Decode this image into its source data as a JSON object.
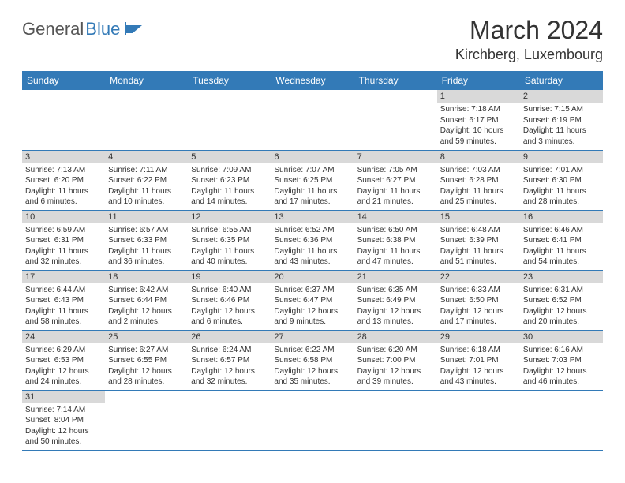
{
  "logo": {
    "part1": "General",
    "part2": "Blue"
  },
  "title": "March 2024",
  "location": "Kirchberg, Luxembourg",
  "colors": {
    "header_bg": "#337ab7",
    "header_fg": "#ffffff",
    "daynum_bg": "#d9d9d9",
    "row_border": "#337ab7",
    "text": "#333333"
  },
  "day_labels": [
    "Sunday",
    "Monday",
    "Tuesday",
    "Wednesday",
    "Thursday",
    "Friday",
    "Saturday"
  ],
  "weeks": [
    [
      null,
      null,
      null,
      null,
      null,
      {
        "n": "1",
        "sr": "Sunrise: 7:18 AM",
        "ss": "Sunset: 6:17 PM",
        "dl": "Daylight: 10 hours and 59 minutes."
      },
      {
        "n": "2",
        "sr": "Sunrise: 7:15 AM",
        "ss": "Sunset: 6:19 PM",
        "dl": "Daylight: 11 hours and 3 minutes."
      }
    ],
    [
      {
        "n": "3",
        "sr": "Sunrise: 7:13 AM",
        "ss": "Sunset: 6:20 PM",
        "dl": "Daylight: 11 hours and 6 minutes."
      },
      {
        "n": "4",
        "sr": "Sunrise: 7:11 AM",
        "ss": "Sunset: 6:22 PM",
        "dl": "Daylight: 11 hours and 10 minutes."
      },
      {
        "n": "5",
        "sr": "Sunrise: 7:09 AM",
        "ss": "Sunset: 6:23 PM",
        "dl": "Daylight: 11 hours and 14 minutes."
      },
      {
        "n": "6",
        "sr": "Sunrise: 7:07 AM",
        "ss": "Sunset: 6:25 PM",
        "dl": "Daylight: 11 hours and 17 minutes."
      },
      {
        "n": "7",
        "sr": "Sunrise: 7:05 AM",
        "ss": "Sunset: 6:27 PM",
        "dl": "Daylight: 11 hours and 21 minutes."
      },
      {
        "n": "8",
        "sr": "Sunrise: 7:03 AM",
        "ss": "Sunset: 6:28 PM",
        "dl": "Daylight: 11 hours and 25 minutes."
      },
      {
        "n": "9",
        "sr": "Sunrise: 7:01 AM",
        "ss": "Sunset: 6:30 PM",
        "dl": "Daylight: 11 hours and 28 minutes."
      }
    ],
    [
      {
        "n": "10",
        "sr": "Sunrise: 6:59 AM",
        "ss": "Sunset: 6:31 PM",
        "dl": "Daylight: 11 hours and 32 minutes."
      },
      {
        "n": "11",
        "sr": "Sunrise: 6:57 AM",
        "ss": "Sunset: 6:33 PM",
        "dl": "Daylight: 11 hours and 36 minutes."
      },
      {
        "n": "12",
        "sr": "Sunrise: 6:55 AM",
        "ss": "Sunset: 6:35 PM",
        "dl": "Daylight: 11 hours and 40 minutes."
      },
      {
        "n": "13",
        "sr": "Sunrise: 6:52 AM",
        "ss": "Sunset: 6:36 PM",
        "dl": "Daylight: 11 hours and 43 minutes."
      },
      {
        "n": "14",
        "sr": "Sunrise: 6:50 AM",
        "ss": "Sunset: 6:38 PM",
        "dl": "Daylight: 11 hours and 47 minutes."
      },
      {
        "n": "15",
        "sr": "Sunrise: 6:48 AM",
        "ss": "Sunset: 6:39 PM",
        "dl": "Daylight: 11 hours and 51 minutes."
      },
      {
        "n": "16",
        "sr": "Sunrise: 6:46 AM",
        "ss": "Sunset: 6:41 PM",
        "dl": "Daylight: 11 hours and 54 minutes."
      }
    ],
    [
      {
        "n": "17",
        "sr": "Sunrise: 6:44 AM",
        "ss": "Sunset: 6:43 PM",
        "dl": "Daylight: 11 hours and 58 minutes."
      },
      {
        "n": "18",
        "sr": "Sunrise: 6:42 AM",
        "ss": "Sunset: 6:44 PM",
        "dl": "Daylight: 12 hours and 2 minutes."
      },
      {
        "n": "19",
        "sr": "Sunrise: 6:40 AM",
        "ss": "Sunset: 6:46 PM",
        "dl": "Daylight: 12 hours and 6 minutes."
      },
      {
        "n": "20",
        "sr": "Sunrise: 6:37 AM",
        "ss": "Sunset: 6:47 PM",
        "dl": "Daylight: 12 hours and 9 minutes."
      },
      {
        "n": "21",
        "sr": "Sunrise: 6:35 AM",
        "ss": "Sunset: 6:49 PM",
        "dl": "Daylight: 12 hours and 13 minutes."
      },
      {
        "n": "22",
        "sr": "Sunrise: 6:33 AM",
        "ss": "Sunset: 6:50 PM",
        "dl": "Daylight: 12 hours and 17 minutes."
      },
      {
        "n": "23",
        "sr": "Sunrise: 6:31 AM",
        "ss": "Sunset: 6:52 PM",
        "dl": "Daylight: 12 hours and 20 minutes."
      }
    ],
    [
      {
        "n": "24",
        "sr": "Sunrise: 6:29 AM",
        "ss": "Sunset: 6:53 PM",
        "dl": "Daylight: 12 hours and 24 minutes."
      },
      {
        "n": "25",
        "sr": "Sunrise: 6:27 AM",
        "ss": "Sunset: 6:55 PM",
        "dl": "Daylight: 12 hours and 28 minutes."
      },
      {
        "n": "26",
        "sr": "Sunrise: 6:24 AM",
        "ss": "Sunset: 6:57 PM",
        "dl": "Daylight: 12 hours and 32 minutes."
      },
      {
        "n": "27",
        "sr": "Sunrise: 6:22 AM",
        "ss": "Sunset: 6:58 PM",
        "dl": "Daylight: 12 hours and 35 minutes."
      },
      {
        "n": "28",
        "sr": "Sunrise: 6:20 AM",
        "ss": "Sunset: 7:00 PM",
        "dl": "Daylight: 12 hours and 39 minutes."
      },
      {
        "n": "29",
        "sr": "Sunrise: 6:18 AM",
        "ss": "Sunset: 7:01 PM",
        "dl": "Daylight: 12 hours and 43 minutes."
      },
      {
        "n": "30",
        "sr": "Sunrise: 6:16 AM",
        "ss": "Sunset: 7:03 PM",
        "dl": "Daylight: 12 hours and 46 minutes."
      }
    ],
    [
      {
        "n": "31",
        "sr": "Sunrise: 7:14 AM",
        "ss": "Sunset: 8:04 PM",
        "dl": "Daylight: 12 hours and 50 minutes."
      },
      null,
      null,
      null,
      null,
      null,
      null
    ]
  ]
}
